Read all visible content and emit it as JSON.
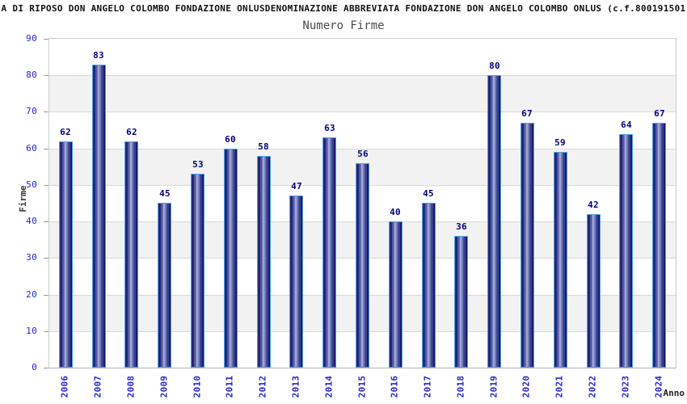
{
  "chart_data": {
    "type": "bar",
    "title": "A DI RIPOSO DON ANGELO COLOMBO FONDAZIONE ONLUSDENOMINAZIONE ABBREVIATA FONDAZIONE DON ANGELO COLOMBO ONLUS (c.f.800191501",
    "subtitle": "Numero Firme",
    "xlabel": "Anno",
    "ylabel": "Firme",
    "categories": [
      "2006",
      "2007",
      "2008",
      "2009",
      "2010",
      "2011",
      "2012",
      "2013",
      "2014",
      "2015",
      "2016",
      "2017",
      "2018",
      "2019",
      "2020",
      "2021",
      "2022",
      "2023",
      "2024"
    ],
    "values": [
      62,
      83,
      62,
      45,
      53,
      60,
      58,
      47,
      63,
      56,
      40,
      45,
      36,
      80,
      67,
      59,
      42,
      64,
      67
    ],
    "ylim": [
      0,
      90
    ],
    "ytick_step": 10,
    "yticks": [
      0,
      10,
      20,
      30,
      40,
      50,
      60,
      70,
      80,
      90
    ],
    "legend": null,
    "grid": "horizontal-bands",
    "colors": {
      "band_gray": "#f2f2f2",
      "gridline": "#d9d9d9",
      "plot_border": "#cccccc",
      "axis_line": "#b3b3b3",
      "bar_outline": "#4da0e6",
      "bar_dark": "#12125f",
      "bar_mid": "#5560a8",
      "bar_light": "#aab1de",
      "value_label": "#00007a",
      "tick_label": "#2525cf",
      "tick_mark": "#999999",
      "title_color": "#111111",
      "subtitle_color": "#4a4a4a",
      "axis_title_color": "#333333"
    }
  }
}
